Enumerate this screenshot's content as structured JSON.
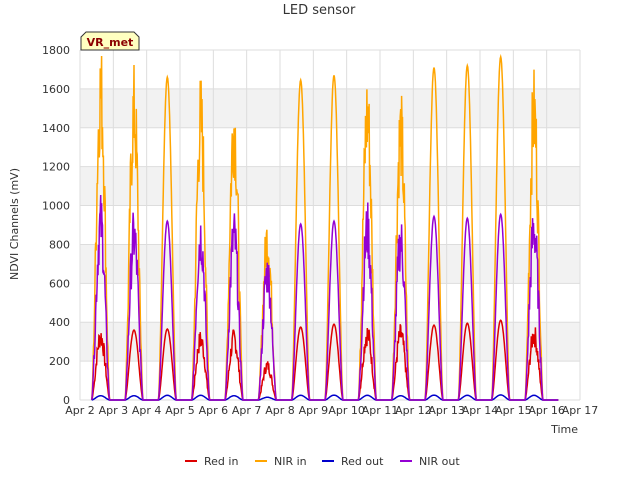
{
  "chart_data": {
    "type": "line",
    "title": "LED sensor",
    "xlabel": "Time",
    "ylabel": "NDVI Channels (mV)",
    "badge": "VR_met",
    "ylim": [
      0,
      1800
    ],
    "yticks": [
      0,
      200,
      400,
      600,
      800,
      1000,
      1200,
      1400,
      1600,
      1800
    ],
    "xlim": [
      "Apr 2",
      "Apr 17"
    ],
    "xticks": [
      "Apr 2",
      "Apr 3",
      "Apr 4",
      "Apr 5",
      "Apr 6",
      "Apr 7",
      "Apr 8",
      "Apr 9",
      "Apr 10",
      "Apr 11",
      "Apr 12",
      "Apr 13",
      "Apr 14",
      "Apr 15",
      "Apr 16",
      "Apr 17"
    ],
    "grid": true,
    "legend_position": "bottom",
    "day_peak_x": [
      "Apr 2 19:00",
      "Apr 3 20:00",
      "Apr 4 20:00",
      "Apr 5 20:00",
      "Apr 6 20:00",
      "Apr 7 20:00",
      "Apr 8 20:00",
      "Apr 9 20:00",
      "Apr 10 20:00",
      "Apr 11 20:00",
      "Apr 12 20:00",
      "Apr 13 20:00",
      "Apr 14 20:00",
      "Apr 15 20:00"
    ],
    "series": [
      {
        "name": "Red in",
        "color": "#dd0000",
        "daily_peak_values": [
          370,
          360,
          365,
          350,
          355,
          200,
          375,
          390,
          385,
          380,
          385,
          395,
          410,
          380
        ],
        "noisy_days": [
          0,
          3,
          4,
          5,
          8,
          9,
          13
        ]
      },
      {
        "name": "NIR in",
        "color": "#ffa500",
        "daily_peak_values": [
          1790,
          1675,
          1660,
          1625,
          1595,
          930,
          1645,
          1670,
          1655,
          1550,
          1710,
          1720,
          1765,
          1660
        ],
        "noisy_days": [
          0,
          1,
          3,
          4,
          5,
          8,
          9,
          13
        ]
      },
      {
        "name": "Red out",
        "color": "#0000cc",
        "daily_peak_values": [
          22,
          22,
          24,
          24,
          22,
          14,
          24,
          25,
          24,
          22,
          25,
          24,
          26,
          24
        ],
        "noisy_days": []
      },
      {
        "name": "NIR out",
        "color": "#9400d3",
        "daily_peak_values": [
          1030,
          950,
          920,
          955,
          955,
          740,
          905,
          920,
          990,
          925,
          945,
          935,
          955,
          995
        ],
        "noisy_days": [
          0,
          1,
          3,
          4,
          5,
          8,
          9,
          13
        ]
      }
    ]
  }
}
